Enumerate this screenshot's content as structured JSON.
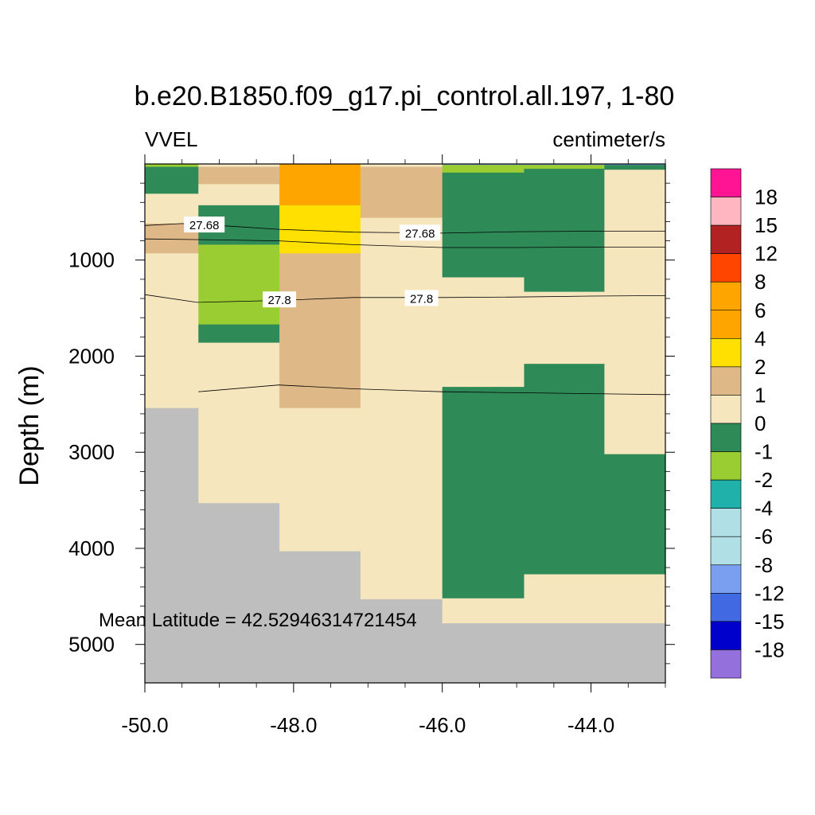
{
  "chart_data": {
    "type": "heatmap",
    "title": "b.e20.B1850.f09_g17.pi_control.all.197, 1-80",
    "left_subtitle": "VVEL",
    "right_subtitle": "centimeter/s",
    "ylabel": "Depth (m)",
    "xlabel": "",
    "annotation": "Mean Latitude = 42.52946314721454",
    "x_range": [
      -50.0,
      -43.0
    ],
    "y_range": [
      0,
      5400
    ],
    "y_reversed": true,
    "x_ticks": [
      -50.0,
      -48.0,
      -46.0,
      -44.0
    ],
    "x_tick_labels": [
      "-50.0",
      "-48.0",
      "-46.0",
      "-44.0"
    ],
    "y_ticks": [
      1000,
      2000,
      3000,
      4000,
      5000
    ],
    "y_tick_labels": [
      "1000",
      "2000",
      "3000",
      "4000",
      "5000"
    ],
    "colorbar": {
      "colors": [
        "#ff1493",
        "#ffb6c1",
        "#b22222",
        "#ff4500",
        "#ffa500",
        "#ffa500",
        "#ffe000",
        "#deb887",
        "#f5e6be",
        "#2e8b57",
        "#9acd32",
        "#20b2aa",
        "#b0e0e6",
        "#b0e0e6",
        "#7b9ff0",
        "#4169e1",
        "#0000cd",
        "#9370db"
      ],
      "labels": [
        "18",
        "15",
        "12",
        "8",
        "6",
        "4",
        "2",
        "1",
        "0",
        "-1",
        "-2",
        "-4",
        "-6",
        "-8",
        "-12",
        "-15",
        "-18"
      ]
    },
    "land_color": "#bebebe",
    "cells": [
      {
        "x0": -50.0,
        "x1": -49.28,
        "y0": 0,
        "y1": 30,
        "c": "#9acd32"
      },
      {
        "x0": -50.0,
        "x1": -49.28,
        "y0": 30,
        "y1": 310,
        "c": "#2e8b57"
      },
      {
        "x0": -50.0,
        "x1": -49.28,
        "y0": 310,
        "y1": 620,
        "c": "#f5e6be"
      },
      {
        "x0": -50.0,
        "x1": -49.28,
        "y0": 620,
        "y1": 930,
        "c": "#deb887"
      },
      {
        "x0": -50.0,
        "x1": -49.28,
        "y0": 930,
        "y1": 2540,
        "c": "#f5e6be"
      },
      {
        "x0": -50.0,
        "x1": -49.28,
        "y0": 2540,
        "y1": 5400,
        "c": "#bebebe"
      },
      {
        "x0": -49.28,
        "x1": -48.19,
        "y0": 0,
        "y1": 30,
        "c": "#f5e6be"
      },
      {
        "x0": -49.28,
        "x1": -48.19,
        "y0": 30,
        "y1": 210,
        "c": "#deb887"
      },
      {
        "x0": -49.28,
        "x1": -48.19,
        "y0": 210,
        "y1": 430,
        "c": "#f5e6be"
      },
      {
        "x0": -49.28,
        "x1": -48.19,
        "y0": 430,
        "y1": 840,
        "c": "#2e8b57"
      },
      {
        "x0": -49.28,
        "x1": -48.19,
        "y0": 840,
        "y1": 1670,
        "c": "#9acd32"
      },
      {
        "x0": -49.28,
        "x1": -48.19,
        "y0": 1670,
        "y1": 1860,
        "c": "#2e8b57"
      },
      {
        "x0": -49.28,
        "x1": -48.19,
        "y0": 1860,
        "y1": 3530,
        "c": "#f5e6be"
      },
      {
        "x0": -49.28,
        "x1": -48.19,
        "y0": 3530,
        "y1": 5400,
        "c": "#bebebe"
      },
      {
        "x0": -48.19,
        "x1": -47.1,
        "y0": 0,
        "y1": 430,
        "c": "#ffa500"
      },
      {
        "x0": -48.19,
        "x1": -47.1,
        "y0": 430,
        "y1": 930,
        "c": "#ffe000"
      },
      {
        "x0": -48.19,
        "x1": -47.1,
        "y0": 930,
        "y1": 2540,
        "c": "#deb887"
      },
      {
        "x0": -48.19,
        "x1": -47.1,
        "y0": 2540,
        "y1": 4030,
        "c": "#f5e6be"
      },
      {
        "x0": -48.19,
        "x1": -47.1,
        "y0": 4030,
        "y1": 5400,
        "c": "#bebebe"
      },
      {
        "x0": -47.1,
        "x1": -46.0,
        "y0": 0,
        "y1": 30,
        "c": "#f5e6be"
      },
      {
        "x0": -47.1,
        "x1": -46.0,
        "y0": 30,
        "y1": 560,
        "c": "#deb887"
      },
      {
        "x0": -47.1,
        "x1": -46.0,
        "y0": 560,
        "y1": 4530,
        "c": "#f5e6be"
      },
      {
        "x0": -47.1,
        "x1": -46.0,
        "y0": 4530,
        "y1": 5400,
        "c": "#bebebe"
      },
      {
        "x0": -46.0,
        "x1": -44.9,
        "y0": 0,
        "y1": 10,
        "c": "#7b9ff0"
      },
      {
        "x0": -46.0,
        "x1": -44.9,
        "y0": 10,
        "y1": 90,
        "c": "#9acd32"
      },
      {
        "x0": -46.0,
        "x1": -44.9,
        "y0": 90,
        "y1": 1180,
        "c": "#2e8b57"
      },
      {
        "x0": -46.0,
        "x1": -44.9,
        "y0": 1180,
        "y1": 2320,
        "c": "#f5e6be"
      },
      {
        "x0": -46.0,
        "x1": -44.9,
        "y0": 2320,
        "y1": 4520,
        "c": "#2e8b57"
      },
      {
        "x0": -46.0,
        "x1": -44.9,
        "y0": 4520,
        "y1": 4780,
        "c": "#f5e6be"
      },
      {
        "x0": -46.0,
        "x1": -44.9,
        "y0": 4780,
        "y1": 5400,
        "c": "#bebebe"
      },
      {
        "x0": -44.9,
        "x1": -43.82,
        "y0": 0,
        "y1": 10,
        "c": "#7b9ff0"
      },
      {
        "x0": -44.9,
        "x1": -43.82,
        "y0": 10,
        "y1": 50,
        "c": "#9acd32"
      },
      {
        "x0": -44.9,
        "x1": -43.82,
        "y0": 50,
        "y1": 1330,
        "c": "#2e8b57"
      },
      {
        "x0": -44.9,
        "x1": -43.82,
        "y0": 1330,
        "y1": 2080,
        "c": "#f5e6be"
      },
      {
        "x0": -44.9,
        "x1": -43.82,
        "y0": 2080,
        "y1": 4270,
        "c": "#2e8b57"
      },
      {
        "x0": -44.9,
        "x1": -43.82,
        "y0": 4270,
        "y1": 4780,
        "c": "#f5e6be"
      },
      {
        "x0": -44.9,
        "x1": -43.82,
        "y0": 4780,
        "y1": 5400,
        "c": "#bebebe"
      },
      {
        "x0": -43.82,
        "x1": -43.0,
        "y0": 0,
        "y1": 10,
        "c": "#7b9ff0"
      },
      {
        "x0": -43.82,
        "x1": -43.0,
        "y0": 10,
        "y1": 60,
        "c": "#2e8b57"
      },
      {
        "x0": -43.82,
        "x1": -43.0,
        "y0": 60,
        "y1": 3020,
        "c": "#f5e6be"
      },
      {
        "x0": -43.82,
        "x1": -43.0,
        "y0": 3020,
        "y1": 4270,
        "c": "#2e8b57"
      },
      {
        "x0": -43.82,
        "x1": -43.0,
        "y0": 4270,
        "y1": 4780,
        "c": "#f5e6be"
      },
      {
        "x0": -43.82,
        "x1": -43.0,
        "y0": 4780,
        "y1": 5400,
        "c": "#bebebe"
      }
    ],
    "contours": [
      {
        "level": "27.68",
        "points": [
          [
            -50.0,
            640
          ],
          [
            -49.5,
            620
          ],
          [
            -49.0,
            640
          ],
          [
            -48.2,
            680
          ],
          [
            -47.2,
            710
          ],
          [
            -46.0,
            720
          ],
          [
            -45.0,
            705
          ],
          [
            -44.0,
            700
          ],
          [
            -43.0,
            700
          ]
        ],
        "labels_at": [
          [
            -49.2,
            630
          ],
          [
            -46.3,
            715
          ]
        ]
      },
      {
        "level": "27.8",
        "points": [
          [
            -50.0,
            780
          ],
          [
            -49.0,
            790
          ],
          [
            -48.2,
            800
          ],
          [
            -47.2,
            840
          ],
          [
            -46.0,
            870
          ],
          [
            -45.0,
            870
          ],
          [
            -44.0,
            865
          ],
          [
            -43.0,
            865
          ]
        ]
      },
      {
        "level": "27.8",
        "points": [
          [
            -50.0,
            1360
          ],
          [
            -49.3,
            1440
          ],
          [
            -48.2,
            1420
          ],
          [
            -47.2,
            1390
          ],
          [
            -46.0,
            1390
          ],
          [
            -45.0,
            1385
          ],
          [
            -44.0,
            1375
          ],
          [
            -43.0,
            1370
          ]
        ],
        "labels_at": [
          [
            -48.19,
            1410
          ],
          [
            -46.28,
            1395
          ]
        ]
      },
      {
        "level": "",
        "points": [
          [
            -49.28,
            2370
          ],
          [
            -48.2,
            2300
          ],
          [
            -47.2,
            2340
          ],
          [
            -46.0,
            2370
          ],
          [
            -45.0,
            2380
          ],
          [
            -44.0,
            2390
          ],
          [
            -43.0,
            2400
          ]
        ]
      }
    ]
  }
}
